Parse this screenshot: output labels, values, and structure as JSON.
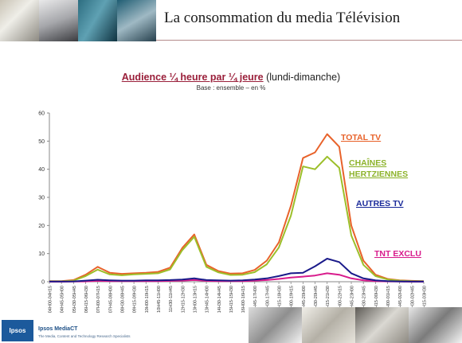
{
  "slide": {
    "title": "La consommation du media Télévision"
  },
  "chart_title": {
    "main": "Audience ¼ heure par ¼ jeure",
    "suffix": "(lundi-dimanche)",
    "base": "Base : ensemble – en %"
  },
  "footer": {
    "logo_text": "Ipsos",
    "brand": "Ipsos MediaCT",
    "tagline": "The Media, Content and Technology Research Specialists"
  },
  "chart_data": {
    "type": "line",
    "ylim": [
      0,
      60
    ],
    "yticks": [
      0,
      10,
      20,
      30,
      40,
      50,
      60
    ],
    "grid": false,
    "legend": "inline-labels-right",
    "x": [
      "04H00-04H15",
      "04H45-05H00",
      "05H30-05H45",
      "06H15-06H30",
      "07H00-07H15",
      "07H45-08H00",
      "08H30-08H45",
      "09H15-09H30",
      "10H00-10H15",
      "10H45-11H00",
      "11H30-11H45",
      "12H15-12H30",
      "13H00-13H15",
      "13H45-14H00",
      "14H30-14H45",
      "15H15-15H30",
      "16H00-16H15",
      "16H45-17H00",
      "17H30-17H45",
      "18H15-18H30",
      "19H00-19H15",
      "19H45-20H00",
      "20H30-20H45",
      "21H15-21H30",
      "22H00-22H15",
      "22H45-23H00",
      "23H30-23H45",
      "00H15-00H30",
      "01H00-01H15",
      "01H45-02H00",
      "02H30-02H45",
      "03H15-03H30"
    ],
    "series": [
      {
        "name": "TOTAL TV",
        "color": "#e8622a",
        "label_color": "#e8622a",
        "values": [
          0.2,
          0.2,
          0.6,
          2.5,
          5.3,
          3.2,
          2.8,
          3.0,
          3.2,
          3.5,
          5.0,
          12.0,
          16.8,
          6.0,
          3.8,
          2.9,
          3.0,
          4.2,
          7.5,
          14.0,
          27.0,
          44.0,
          46.0,
          52.5,
          48.0,
          20.0,
          7.5,
          2.5,
          1.0,
          0.5,
          0.3,
          0.2
        ]
      },
      {
        "name": "CHAÎNES HERTZIENNES",
        "label_lines": [
          "CHAÎNES",
          "HERTZIENNES"
        ],
        "color": "#9cbf2a",
        "label_color": "#8db32b",
        "values": [
          0.15,
          0.15,
          0.4,
          2.0,
          4.3,
          2.6,
          2.3,
          2.6,
          2.8,
          3.0,
          4.4,
          11.2,
          16.0,
          5.3,
          3.3,
          2.4,
          2.5,
          3.4,
          6.2,
          12.2,
          23.5,
          41.0,
          40.0,
          44.5,
          40.5,
          16.5,
          6.0,
          2.0,
          0.8,
          0.4,
          0.2,
          0.15
        ]
      },
      {
        "name": "AUTRES TV",
        "color": "#1a1a8a",
        "label_color": "#1a2a9a",
        "values": [
          0.05,
          0.05,
          0.1,
          0.4,
          0.7,
          0.5,
          0.4,
          0.4,
          0.5,
          0.5,
          0.6,
          0.8,
          1.2,
          0.6,
          0.5,
          0.4,
          0.5,
          0.8,
          1.2,
          2.0,
          3.0,
          3.2,
          5.5,
          8.2,
          7.0,
          3.0,
          1.2,
          0.5,
          0.2,
          0.1,
          0.05,
          0.05
        ]
      },
      {
        "name": "TNT EXCLU",
        "color": "#d81b8c",
        "label_color": "#d81b8c",
        "values": [
          0.0,
          0.0,
          0.05,
          0.1,
          0.3,
          0.2,
          0.2,
          0.2,
          0.2,
          0.2,
          0.3,
          0.4,
          0.6,
          0.3,
          0.2,
          0.2,
          0.2,
          0.4,
          0.6,
          1.0,
          1.5,
          1.8,
          2.2,
          3.0,
          2.5,
          1.2,
          0.5,
          0.2,
          0.1,
          0.05,
          0.0,
          0.0
        ]
      }
    ]
  }
}
